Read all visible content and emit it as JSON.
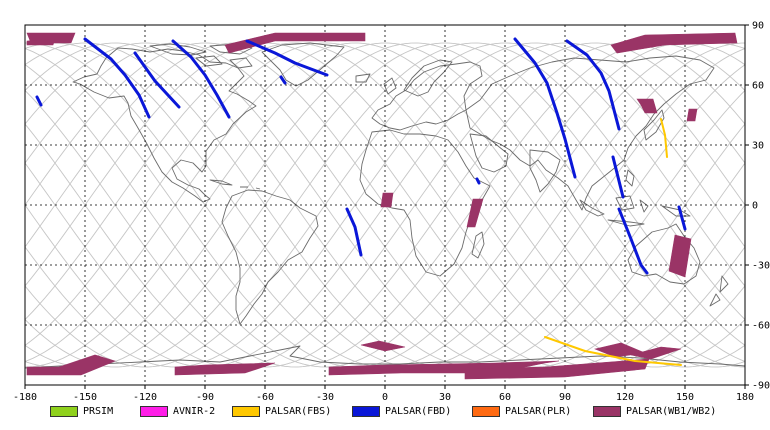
{
  "chart_data": {
    "type": "map",
    "x_ticks": [
      "-180",
      "-150",
      "-120",
      "-90",
      "-60",
      "-30",
      "0",
      "30",
      "60",
      "90",
      "120",
      "150",
      "180"
    ],
    "y_ticks": [
      "90",
      "60",
      "30",
      "0",
      "-30",
      "-60",
      "-90"
    ],
    "xlim": [
      -180,
      180
    ],
    "ylim": [
      -90,
      90
    ],
    "grid": true,
    "legend": [
      {
        "name": "PRSIM",
        "color": "#8fd11c"
      },
      {
        "name": "AVNIR-2",
        "color": "#ff1ee8"
      },
      {
        "name": "PALSAR(FBS)",
        "color": "#ffc800"
      },
      {
        "name": "PALSAR(FBD)",
        "color": "#0a17d8"
      },
      {
        "name": "PALSAR(PLR)",
        "color": "#ff6a12"
      },
      {
        "name": "PALSAR(WB1/WB2)",
        "color": "#9a3466"
      }
    ],
    "fbd_tracks": [
      [
        [
          -150,
          83
        ],
        [
          -137,
          73
        ],
        [
          -130,
          65
        ],
        [
          -123,
          55
        ],
        [
          -118,
          44
        ]
      ],
      [
        [
          -125,
          76
        ],
        [
          -115,
          62
        ],
        [
          -103,
          49
        ]
      ],
      [
        [
          -106,
          82
        ],
        [
          -97,
          74
        ],
        [
          -90,
          65
        ],
        [
          -84,
          55
        ],
        [
          -78,
          44
        ]
      ],
      [
        [
          -69,
          82
        ],
        [
          -55,
          76
        ],
        [
          -45,
          71
        ],
        [
          -29,
          65
        ]
      ],
      [
        [
          -174,
          54
        ],
        [
          -172,
          50
        ]
      ],
      [
        [
          -52,
          64
        ],
        [
          -50,
          61
        ]
      ],
      [
        [
          -19,
          -2
        ],
        [
          -15,
          -11
        ],
        [
          -12,
          -25
        ]
      ],
      [
        [
          65,
          83
        ],
        [
          75,
          71
        ],
        [
          81,
          61
        ],
        [
          86,
          46
        ],
        [
          90,
          33
        ],
        [
          95,
          14
        ]
      ],
      [
        [
          91,
          82
        ],
        [
          101,
          75
        ],
        [
          108,
          66
        ],
        [
          112,
          57
        ],
        [
          117,
          38
        ]
      ],
      [
        [
          117,
          -2
        ],
        [
          123,
          -17
        ],
        [
          128,
          -30
        ],
        [
          131,
          -34
        ]
      ],
      [
        [
          114,
          24
        ],
        [
          119,
          4
        ]
      ],
      [
        [
          147,
          -1
        ],
        [
          150,
          -12
        ]
      ],
      [
        [
          46,
          13
        ],
        [
          47,
          11
        ]
      ]
    ],
    "fbs_tracks": [
      [
        [
          80,
          -66
        ],
        [
          100,
          -73
        ],
        [
          125,
          -78
        ],
        [
          148,
          -80
        ]
      ],
      [
        [
          138,
          43
        ],
        [
          140,
          35
        ],
        [
          141,
          24
        ]
      ]
    ],
    "wb_swaths": [
      [
        [
          -179,
          86
        ],
        [
          -155,
          86
        ],
        [
          -157,
          81
        ],
        [
          -177,
          81
        ]
      ],
      [
        [
          -179,
          82
        ],
        [
          -165,
          83
        ],
        [
          -166,
          80
        ],
        [
          -179,
          80
        ]
      ],
      [
        [
          -80,
          80
        ],
        [
          -55,
          86
        ],
        [
          -10,
          86
        ],
        [
          -10,
          82
        ],
        [
          -55,
          82
        ],
        [
          -78,
          76
        ]
      ],
      [
        [
          113,
          80
        ],
        [
          130,
          85
        ],
        [
          175,
          86
        ],
        [
          176,
          81
        ],
        [
          140,
          80
        ],
        [
          116,
          76
        ]
      ],
      [
        [
          126,
          53
        ],
        [
          128,
          50
        ],
        [
          130,
          46
        ],
        [
          136,
          46
        ],
        [
          134,
          53
        ]
      ],
      [
        [
          152,
          48
        ],
        [
          156,
          48
        ],
        [
          155,
          42
        ],
        [
          151,
          42
        ]
      ],
      [
        [
          145,
          -15
        ],
        [
          153,
          -17
        ],
        [
          150,
          -36
        ],
        [
          142,
          -33
        ]
      ],
      [
        [
          -1,
          6
        ],
        [
          4,
          6
        ],
        [
          3,
          -1
        ],
        [
          -2,
          -1
        ]
      ],
      [
        [
          44,
          3
        ],
        [
          49,
          3
        ],
        [
          45,
          -11
        ],
        [
          41,
          -11
        ]
      ],
      [
        [
          -179,
          -85
        ],
        [
          -152,
          -85
        ],
        [
          -135,
          -78
        ],
        [
          -145,
          -75
        ],
        [
          -163,
          -81
        ],
        [
          -179,
          -81
        ]
      ],
      [
        [
          -105,
          -85
        ],
        [
          -70,
          -84
        ],
        [
          -55,
          -79
        ],
        [
          -90,
          -80
        ],
        [
          -105,
          -81
        ]
      ],
      [
        [
          -28,
          -85
        ],
        [
          8,
          -84
        ],
        [
          55,
          -84
        ],
        [
          80,
          -79
        ],
        [
          87,
          -78
        ],
        [
          55,
          -79
        ],
        [
          0,
          -80
        ],
        [
          -28,
          -81
        ]
      ],
      [
        [
          -12,
          -70
        ],
        [
          -3,
          -68
        ],
        [
          10,
          -71
        ],
        [
          0,
          -73
        ]
      ],
      [
        [
          40,
          -87
        ],
        [
          90,
          -86
        ],
        [
          130,
          -82
        ],
        [
          132,
          -77
        ],
        [
          80,
          -81
        ],
        [
          40,
          -82
        ]
      ],
      [
        [
          105,
          -72
        ],
        [
          118,
          -69
        ],
        [
          130,
          -74
        ],
        [
          115,
          -76
        ]
      ],
      [
        [
          123,
          -75
        ],
        [
          138,
          -71
        ],
        [
          148,
          -72
        ],
        [
          133,
          -77
        ]
      ]
    ]
  },
  "legend_labels": [
    "PRSIM",
    "AVNIR-2",
    "PALSAR(FBS)",
    "PALSAR(FBD)",
    "PALSAR(PLR)",
    "PALSAR(WB1/WB2)"
  ]
}
